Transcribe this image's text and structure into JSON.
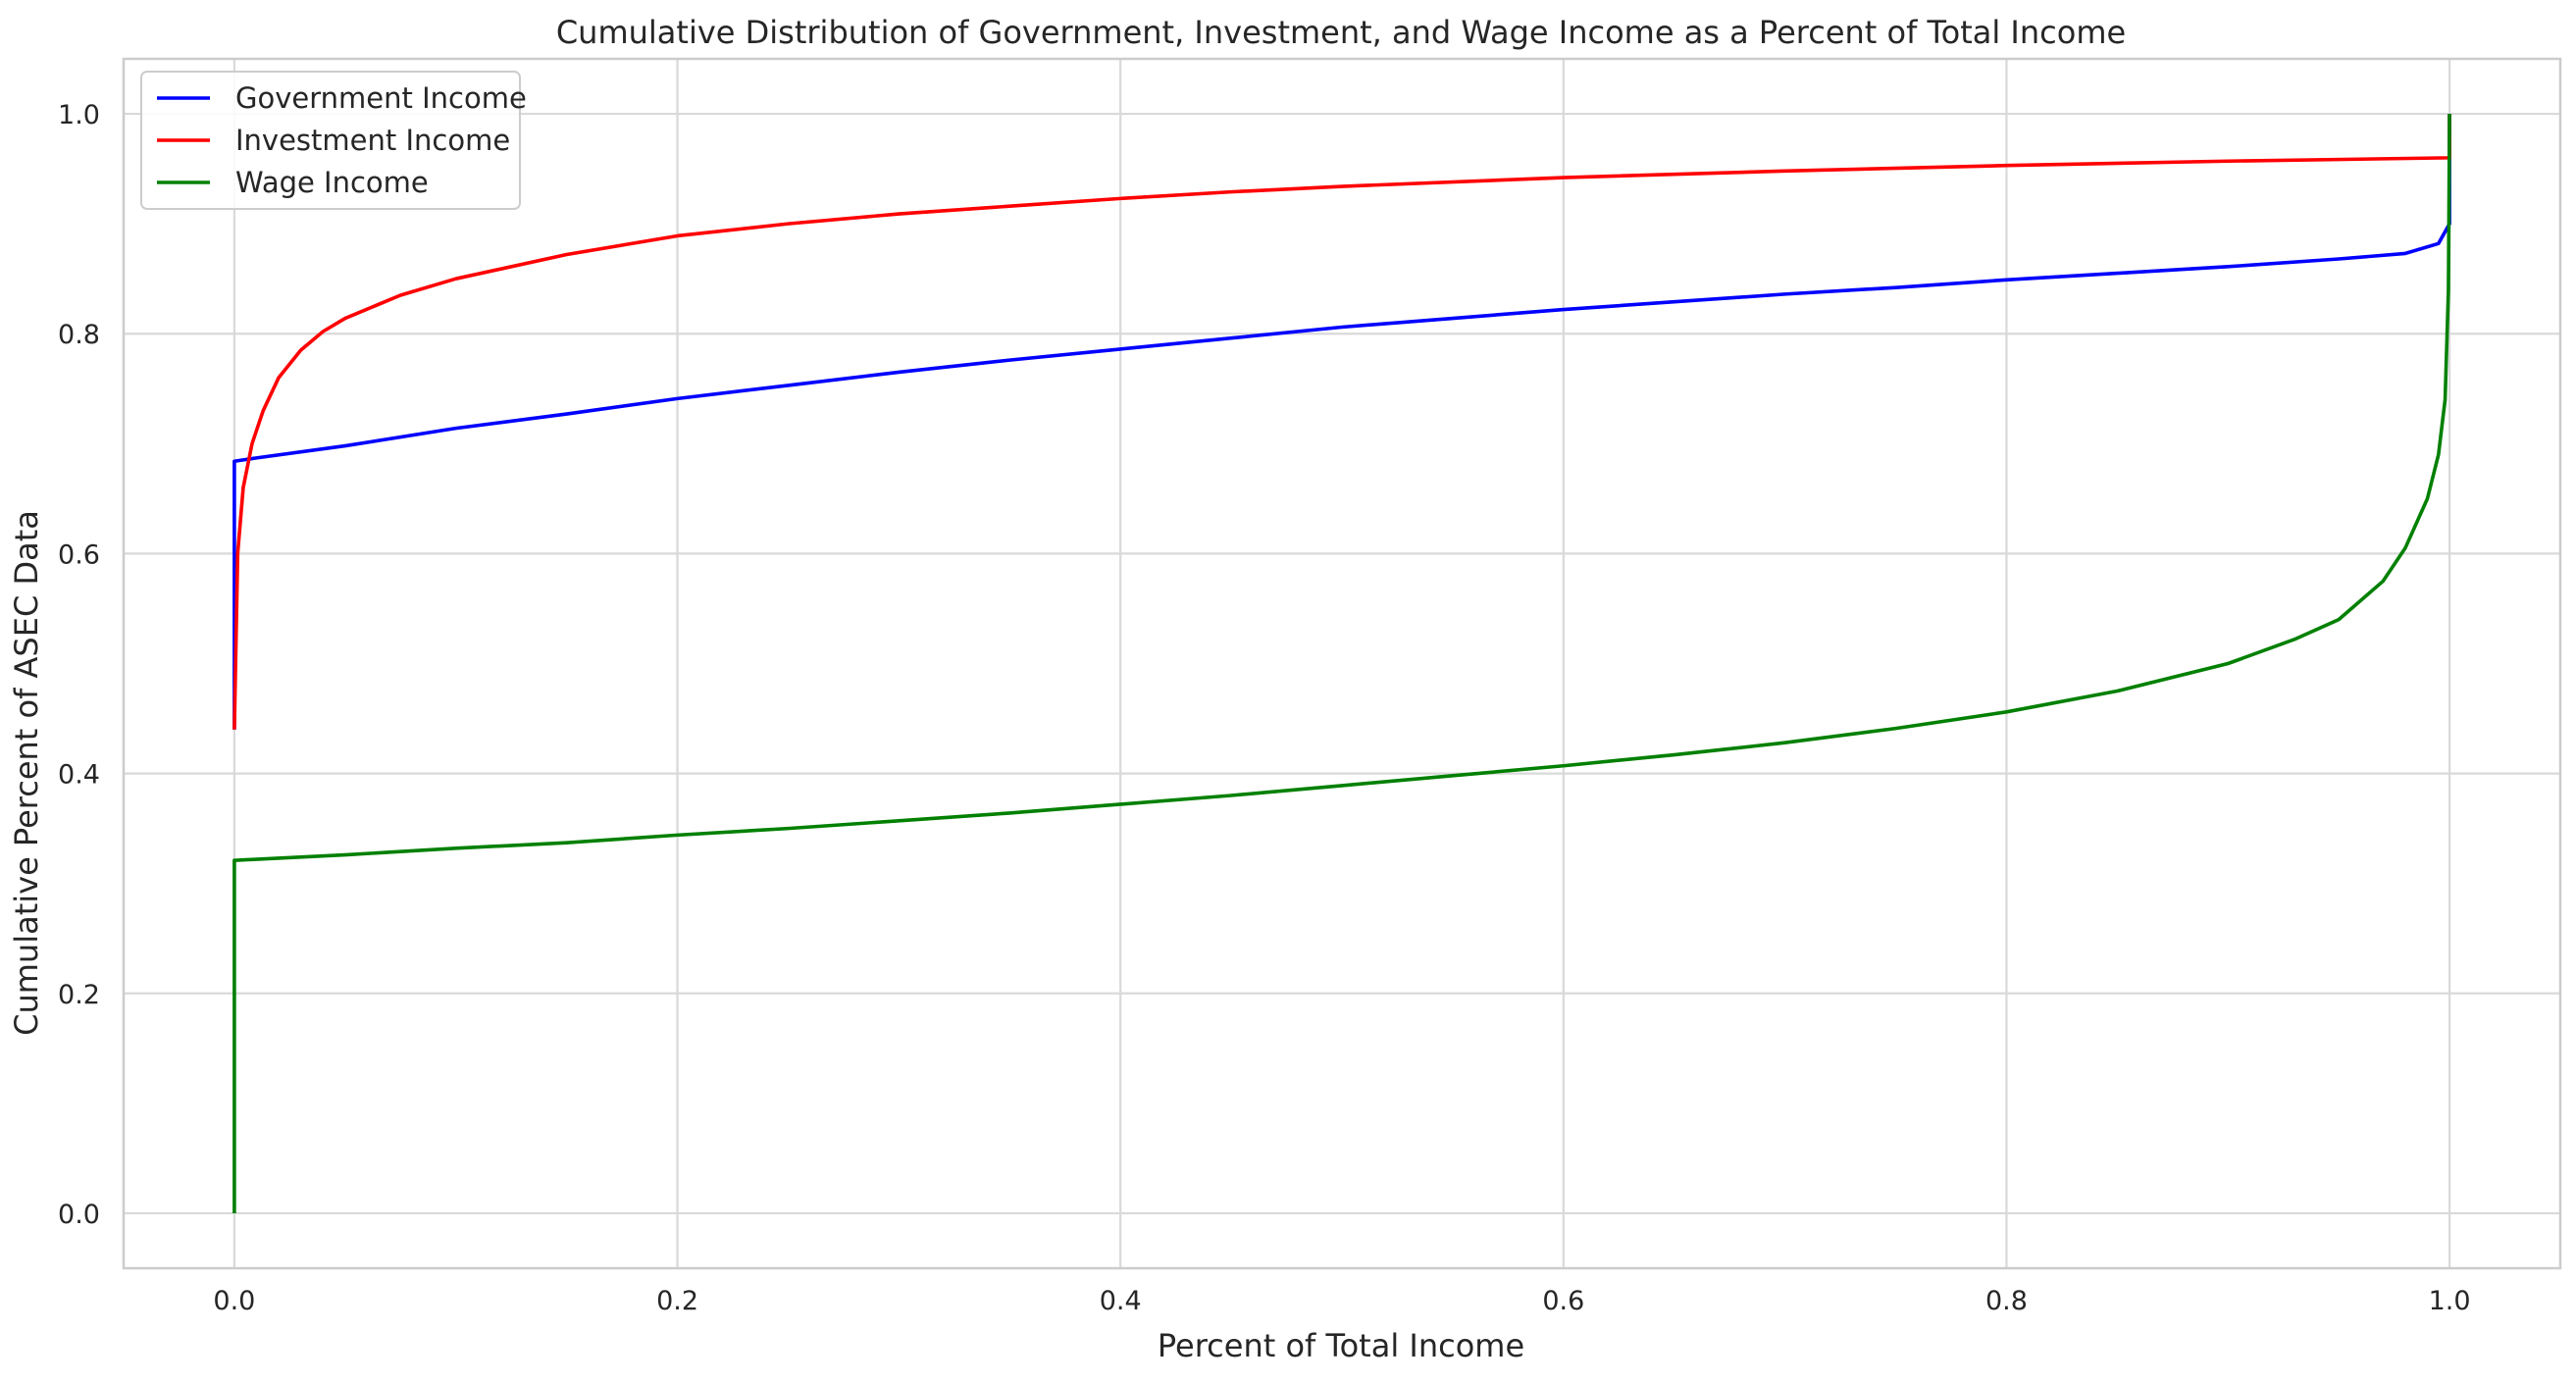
{
  "chart_data": {
    "type": "line",
    "title": "Cumulative Distribution of Government, Investment, and Wage Income as a Percent of Total Income",
    "xlabel": "Percent of Total Income",
    "ylabel": "Cumulative Percent of ASEC Data",
    "xlim": [
      -0.05,
      1.05
    ],
    "ylim": [
      -0.05,
      1.05
    ],
    "x_ticks": [
      "0.0",
      "0.2",
      "0.4",
      "0.6",
      "0.8",
      "1.0"
    ],
    "y_ticks": [
      "0.0",
      "0.2",
      "0.4",
      "0.6",
      "0.8",
      "1.0"
    ],
    "grid": true,
    "legend_position": "top-left",
    "series": [
      {
        "name": "Government Income",
        "color": "#0000ff",
        "points": [
          [
            0.0,
            0.44
          ],
          [
            0.0,
            0.684
          ],
          [
            0.01,
            0.687
          ],
          [
            0.05,
            0.698
          ],
          [
            0.1,
            0.714
          ],
          [
            0.15,
            0.727
          ],
          [
            0.2,
            0.741
          ],
          [
            0.25,
            0.753
          ],
          [
            0.3,
            0.765
          ],
          [
            0.35,
            0.776
          ],
          [
            0.4,
            0.786
          ],
          [
            0.45,
            0.796
          ],
          [
            0.5,
            0.806
          ],
          [
            0.55,
            0.814
          ],
          [
            0.6,
            0.822
          ],
          [
            0.65,
            0.829
          ],
          [
            0.7,
            0.836
          ],
          [
            0.75,
            0.842
          ],
          [
            0.8,
            0.849
          ],
          [
            0.85,
            0.855
          ],
          [
            0.9,
            0.861
          ],
          [
            0.95,
            0.868
          ],
          [
            0.98,
            0.873
          ],
          [
            0.995,
            0.882
          ],
          [
            1.0,
            0.9
          ],
          [
            1.0,
            1.0
          ]
        ]
      },
      {
        "name": "Investment Income",
        "color": "#ff0000",
        "points": [
          [
            0.0,
            0.44
          ],
          [
            0.0015,
            0.6
          ],
          [
            0.004,
            0.66
          ],
          [
            0.008,
            0.7
          ],
          [
            0.013,
            0.73
          ],
          [
            0.02,
            0.76
          ],
          [
            0.03,
            0.785
          ],
          [
            0.04,
            0.802
          ],
          [
            0.05,
            0.814
          ],
          [
            0.075,
            0.835
          ],
          [
            0.1,
            0.85
          ],
          [
            0.15,
            0.872
          ],
          [
            0.2,
            0.889
          ],
          [
            0.25,
            0.9
          ],
          [
            0.3,
            0.909
          ],
          [
            0.35,
            0.916
          ],
          [
            0.4,
            0.923
          ],
          [
            0.45,
            0.929
          ],
          [
            0.5,
            0.934
          ],
          [
            0.6,
            0.942
          ],
          [
            0.7,
            0.948
          ],
          [
            0.8,
            0.953
          ],
          [
            0.9,
            0.957
          ],
          [
            1.0,
            0.96
          ],
          [
            1.0,
            1.0
          ]
        ]
      },
      {
        "name": "Wage Income",
        "color": "#008000",
        "points": [
          [
            0.0,
            0.0
          ],
          [
            0.0,
            0.321
          ],
          [
            0.05,
            0.326
          ],
          [
            0.1,
            0.332
          ],
          [
            0.15,
            0.337
          ],
          [
            0.2,
            0.344
          ],
          [
            0.25,
            0.35
          ],
          [
            0.3,
            0.357
          ],
          [
            0.35,
            0.364
          ],
          [
            0.4,
            0.372
          ],
          [
            0.45,
            0.38
          ],
          [
            0.5,
            0.389
          ],
          [
            0.55,
            0.398
          ],
          [
            0.6,
            0.407
          ],
          [
            0.65,
            0.417
          ],
          [
            0.7,
            0.428
          ],
          [
            0.75,
            0.441
          ],
          [
            0.8,
            0.456
          ],
          [
            0.85,
            0.475
          ],
          [
            0.9,
            0.5
          ],
          [
            0.93,
            0.522
          ],
          [
            0.95,
            0.54
          ],
          [
            0.97,
            0.575
          ],
          [
            0.98,
            0.605
          ],
          [
            0.99,
            0.65
          ],
          [
            0.995,
            0.69
          ],
          [
            0.998,
            0.74
          ],
          [
            0.9995,
            0.84
          ],
          [
            1.0,
            1.0
          ]
        ]
      }
    ]
  }
}
